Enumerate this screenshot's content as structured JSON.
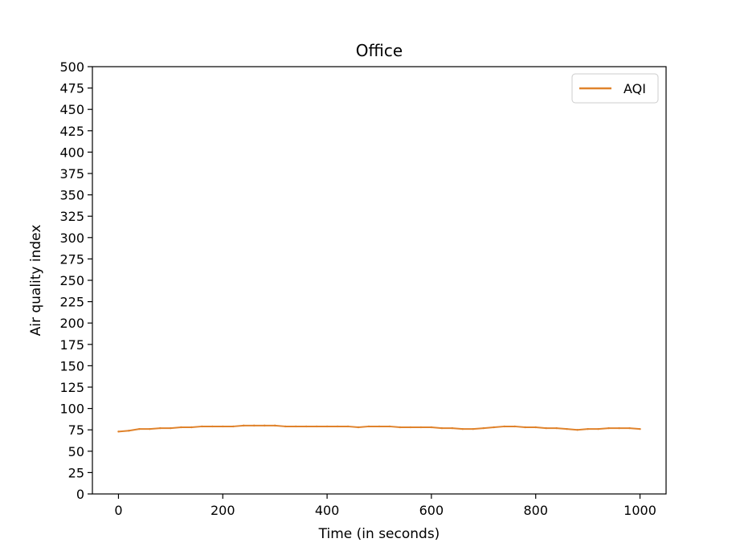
{
  "chart_data": {
    "type": "line",
    "title": "Office",
    "xlabel": "Time (in seconds)",
    "ylabel": "Air quality index",
    "xlim": [
      -50,
      1050
    ],
    "ylim": [
      0,
      500
    ],
    "xticks": [
      0,
      200,
      400,
      600,
      800,
      1000
    ],
    "yticks": [
      0,
      25,
      50,
      75,
      100,
      125,
      150,
      175,
      200,
      225,
      250,
      275,
      300,
      325,
      350,
      375,
      400,
      425,
      450,
      475,
      500
    ],
    "grid": false,
    "legend": {
      "position": "top-right",
      "entries": [
        "AQI"
      ]
    },
    "series": [
      {
        "name": "AQI",
        "color": "#e0832c",
        "x": [
          0,
          20,
          40,
          60,
          80,
          100,
          120,
          140,
          160,
          180,
          200,
          220,
          240,
          260,
          280,
          300,
          320,
          340,
          360,
          380,
          400,
          420,
          440,
          460,
          480,
          500,
          520,
          540,
          560,
          580,
          600,
          620,
          640,
          660,
          680,
          700,
          720,
          740,
          760,
          780,
          800,
          820,
          840,
          860,
          880,
          900,
          920,
          940,
          960,
          980,
          1000
        ],
        "values": [
          73,
          74,
          76,
          76,
          77,
          77,
          78,
          78,
          79,
          79,
          79,
          79,
          80,
          80,
          80,
          80,
          79,
          79,
          79,
          79,
          79,
          79,
          79,
          78,
          79,
          79,
          79,
          78,
          78,
          78,
          78,
          77,
          77,
          76,
          76,
          77,
          78,
          79,
          79,
          78,
          78,
          77,
          77,
          76,
          75,
          76,
          76,
          77,
          77,
          77,
          76
        ]
      }
    ]
  }
}
